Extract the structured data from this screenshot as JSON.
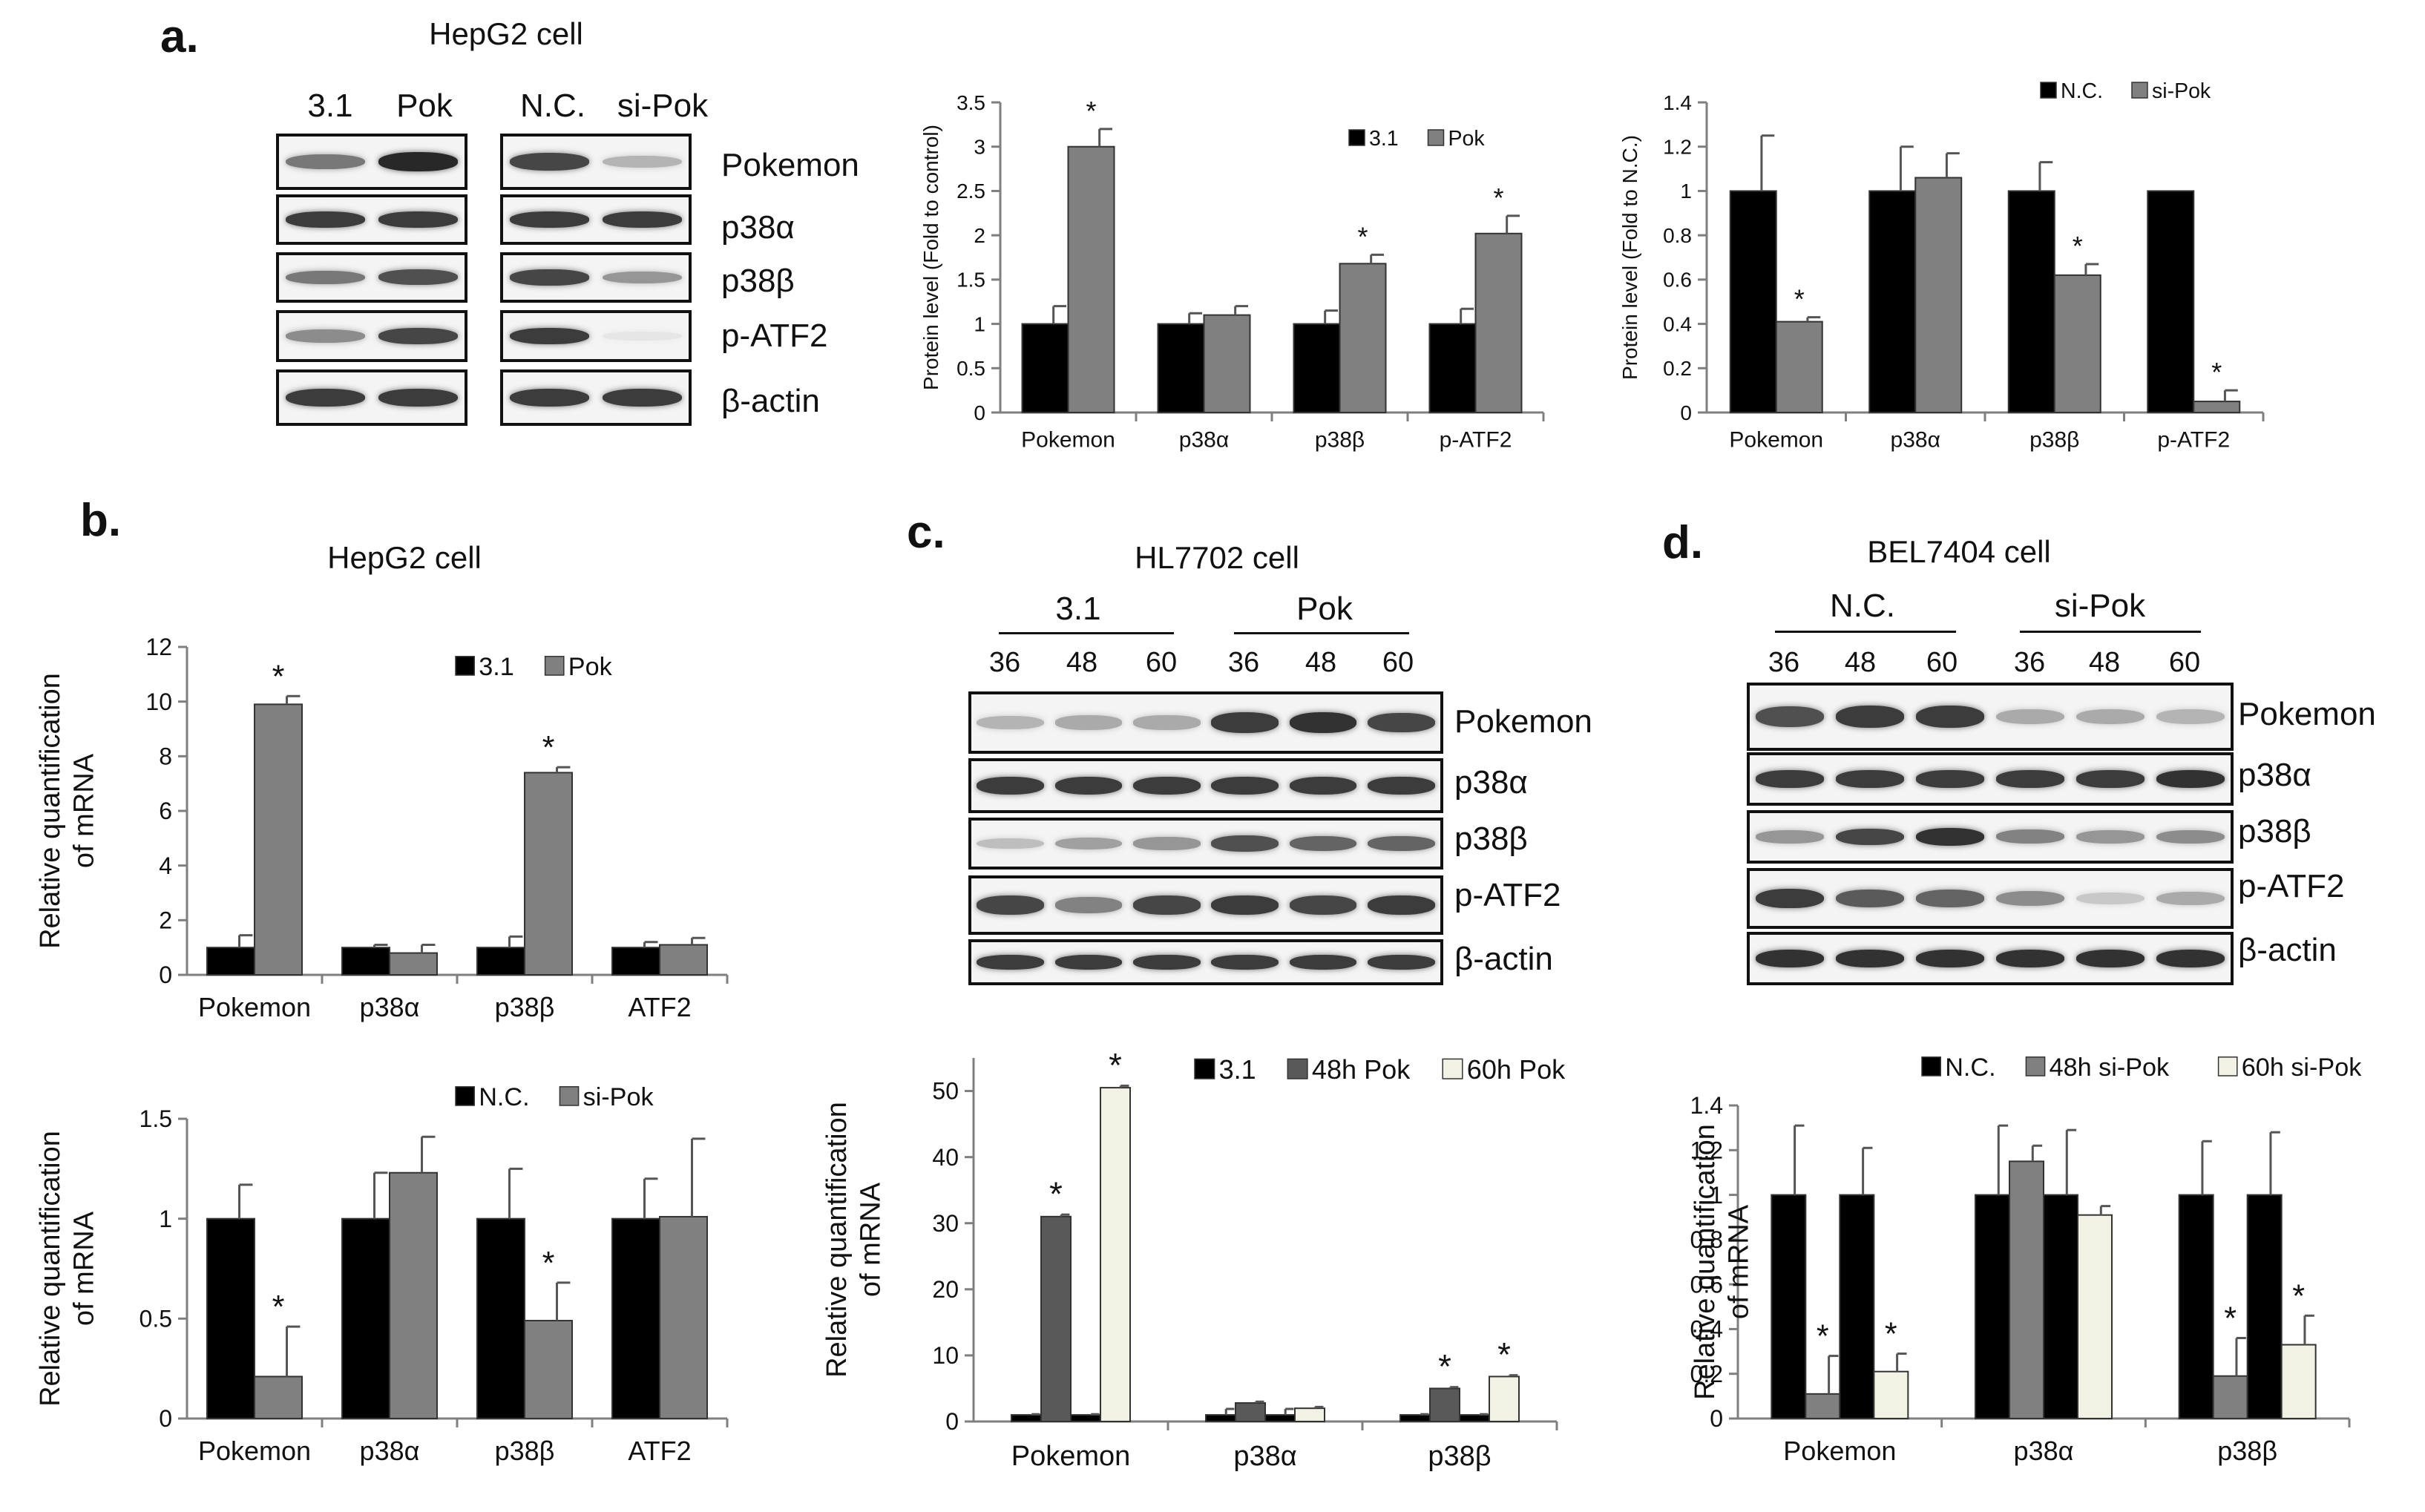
{
  "panel_labels": {
    "a": "a.",
    "b": "b.",
    "c": "c.",
    "d": "d."
  },
  "blots": {
    "a": {
      "cell": "HepG2 cell",
      "left_lanes": [
        "3.1",
        "Pok"
      ],
      "right_lanes": [
        "N.C.",
        "si-Pok"
      ],
      "proteins": [
        "Pokemon",
        "p38α",
        "p38β",
        "p-ATF2",
        "β-actin"
      ]
    },
    "c": {
      "cell": "HL7702 cell",
      "groups": [
        "3.1",
        "Pok"
      ],
      "times": [
        "36",
        "48",
        "60",
        "36",
        "48",
        "60"
      ],
      "proteins": [
        "Pokemon",
        "p38α",
        "p38β",
        "p-ATF2",
        "β-actin"
      ]
    },
    "d": {
      "cell": "BEL7404 cell",
      "groups": [
        "N.C.",
        "si-Pok"
      ],
      "times": [
        "36",
        "48",
        "60",
        "36",
        "48",
        "60"
      ],
      "proteins": [
        "Pokemon",
        "p38α",
        "p38β",
        "p-ATF2",
        "β-actin"
      ]
    }
  },
  "b_title": "HepG2 cell",
  "chart_data": [
    {
      "id": "a_mid",
      "type": "bar",
      "categories": [
        "Pokemon",
        "p38α",
        "p38β",
        "p-ATF2"
      ],
      "series": [
        {
          "name": "3.1",
          "color": "#000000",
          "values": [
            1.0,
            1.0,
            1.0,
            1.0
          ],
          "errors": [
            0.2,
            0.12,
            0.15,
            0.17
          ]
        },
        {
          "name": "Pok",
          "color": "#808080",
          "values": [
            3.0,
            1.1,
            1.68,
            2.02
          ],
          "errors": [
            0.2,
            0.1,
            0.1,
            0.2
          ]
        }
      ],
      "significance": [
        [
          null,
          "*"
        ],
        [
          null,
          null
        ],
        [
          null,
          "*"
        ],
        [
          null,
          "*"
        ]
      ],
      "ylabel": "Protein level (Fold to control)",
      "ylim": [
        0,
        3.5
      ],
      "yticks": [
        "0",
        "0.5",
        "1",
        "1.5",
        "2",
        "2.5",
        "3",
        "3.5"
      ],
      "legend": "top-right"
    },
    {
      "id": "a_right",
      "type": "bar",
      "categories": [
        "Pokemon",
        "p38α",
        "p38β",
        "p-ATF2"
      ],
      "series": [
        {
          "name": "N.C.",
          "color": "#000000",
          "values": [
            1.0,
            1.0,
            1.0,
            1.0
          ],
          "errors": [
            0.25,
            0.2,
            0.13,
            0.0
          ]
        },
        {
          "name": "si-Pok",
          "color": "#808080",
          "values": [
            0.41,
            1.06,
            0.62,
            0.05
          ],
          "errors": [
            0.02,
            0.11,
            0.05,
            0.05
          ]
        }
      ],
      "significance": [
        [
          null,
          "*"
        ],
        [
          null,
          null
        ],
        [
          null,
          "*"
        ],
        [
          null,
          "*"
        ]
      ],
      "ylabel": "Protein level (Fold to N.C.)",
      "ylim": [
        0,
        1.4
      ],
      "yticks": [
        "0",
        "0.2",
        "0.4",
        "0.6",
        "0.8",
        "1",
        "1.2",
        "1.4"
      ],
      "legend": "top-right"
    },
    {
      "id": "b_top",
      "type": "bar",
      "categories": [
        "Pokemon",
        "p38α",
        "p38β",
        "ATF2"
      ],
      "series": [
        {
          "name": "3.1",
          "color": "#000000",
          "values": [
            1.0,
            1.0,
            1.0,
            1.0
          ],
          "errors": [
            0.45,
            0.1,
            0.4,
            0.2
          ]
        },
        {
          "name": "Pok",
          "color": "#808080",
          "values": [
            9.9,
            0.8,
            7.4,
            1.1
          ],
          "errors": [
            0.3,
            0.3,
            0.2,
            0.25
          ]
        }
      ],
      "significance": [
        [
          null,
          "*"
        ],
        [
          null,
          null
        ],
        [
          null,
          "*"
        ],
        [
          null,
          null
        ]
      ],
      "ylabel": "Relative quantification of mRNA",
      "ylim": [
        0,
        12
      ],
      "yticks": [
        "0",
        "2",
        "4",
        "6",
        "8",
        "10",
        "12"
      ],
      "legend": "top-right"
    },
    {
      "id": "b_bottom",
      "type": "bar",
      "categories": [
        "Pokemon",
        "p38α",
        "p38β",
        "ATF2"
      ],
      "series": [
        {
          "name": "N.C.",
          "color": "#000000",
          "values": [
            1.0,
            1.0,
            1.0,
            1.0
          ],
          "errors": [
            0.17,
            0.23,
            0.25,
            0.2
          ]
        },
        {
          "name": "si-Pok",
          "color": "#808080",
          "values": [
            0.21,
            1.23,
            0.49,
            1.01
          ],
          "errors": [
            0.25,
            0.18,
            0.19,
            0.39
          ]
        }
      ],
      "significance": [
        [
          null,
          "*"
        ],
        [
          null,
          null
        ],
        [
          null,
          "*"
        ],
        [
          null,
          null
        ]
      ],
      "ylabel": "Relative quantification of mRNA",
      "ylim": [
        0,
        1.5
      ],
      "yticks": [
        "0",
        "0.5",
        "1",
        "1.5"
      ],
      "legend": "top-right"
    },
    {
      "id": "c_bottom",
      "type": "bar",
      "categories": [
        "Pokemon",
        "p38α",
        "p38β"
      ],
      "bar_order": [
        "3.1",
        "48h Pok",
        "3.1",
        "60h Pok"
      ],
      "series": [
        {
          "name": "3.1",
          "color": "#000000",
          "values": [
            1.0,
            1.0,
            1.0
          ],
          "errors": [
            0.1,
            0.9,
            0.1
          ]
        },
        {
          "name": "48h Pok",
          "color": "#595959",
          "values": [
            31.0,
            2.8,
            5.0
          ],
          "errors": [
            0.3,
            0.2,
            0.2
          ]
        },
        {
          "name": "60h Pok",
          "color": "#f2f2e4",
          "values": [
            50.5,
            2.0,
            6.8
          ],
          "errors": [
            0.3,
            0.2,
            0.2
          ]
        }
      ],
      "significance": [
        [
          null,
          "*",
          null,
          "*"
        ],
        [
          null,
          null,
          null,
          null
        ],
        [
          null,
          "*",
          null,
          "*"
        ]
      ],
      "ylabel": "Relative quantification of mRNA",
      "ylim": [
        0,
        55
      ],
      "yticks": [
        "0",
        "10",
        "20",
        "30",
        "40",
        "50"
      ],
      "legend": "top-right"
    },
    {
      "id": "d_bottom",
      "type": "bar",
      "categories": [
        "Pokemon",
        "p38α",
        "p38β"
      ],
      "bar_order": [
        "N.C.",
        "48h si-Pok",
        "N.C.",
        "60h si-Pok"
      ],
      "series": [
        {
          "name": "N.C.",
          "color": "#000000",
          "values": [
            1.0,
            1.0,
            1.0
          ],
          "errors": [
            0.31,
            0.31,
            0.24
          ]
        },
        {
          "name": "48h si-Pok",
          "color": "#808080",
          "values": [
            0.11,
            1.15,
            0.19
          ],
          "errors": [
            0.17,
            0.07,
            0.17
          ]
        },
        {
          "name": "60h si-Pok",
          "color": "#f2f2e4",
          "values": [
            0.21,
            0.91,
            0.33
          ],
          "errors": [
            0.08,
            0.04,
            0.13
          ]
        }
      ],
      "second_nc_errors": [
        0.21,
        0.29,
        0.28
      ],
      "significance": [
        [
          null,
          "*",
          null,
          "*"
        ],
        [
          null,
          null,
          null,
          null
        ],
        [
          null,
          "*",
          null,
          "*"
        ]
      ],
      "ylabel": "Relative quantification of mRNA",
      "ylim": [
        0,
        1.4
      ],
      "yticks": [
        "0",
        "0.2",
        "0.4",
        "0.6",
        "0.8",
        "1",
        "1.2",
        "1.4"
      ],
      "legend": "top-right"
    }
  ]
}
